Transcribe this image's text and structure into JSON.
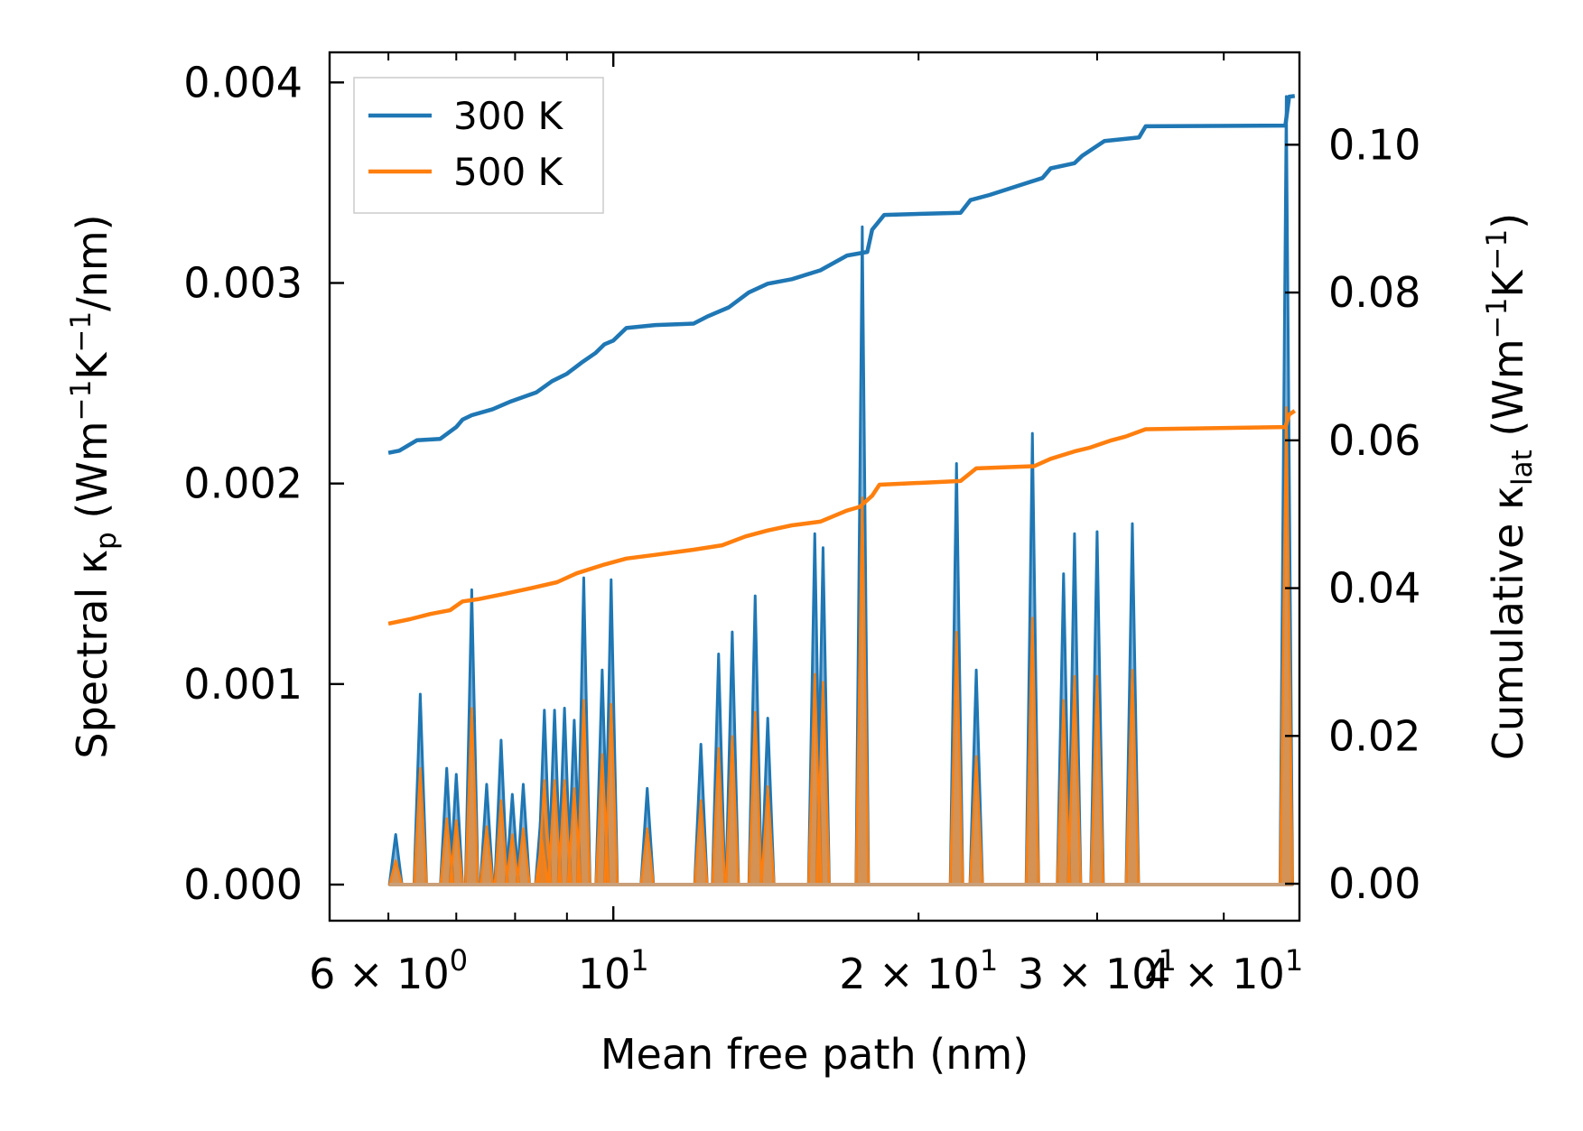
{
  "chart_data": {
    "type": "line",
    "title": "",
    "xlabel": "Mean free path (nm)",
    "ylabel": {
      "main": "Spectral κ",
      "sub": "p",
      "unit_open": " (Wm",
      "exp1": "−1",
      "mid": "K",
      "exp2": "−1",
      "unit_close": "/nm)"
    },
    "y2label": {
      "main": "Cumulative κ",
      "sub": "lat",
      "unit_open": " (Wm",
      "exp1": "−1",
      "mid": "K",
      "exp2": "−1",
      "unit_close": ")"
    },
    "x_scale": "log",
    "xlim": [
      5.25,
      47.5
    ],
    "ylim": [
      -0.00018,
      0.00415
    ],
    "y2lim": [
      -0.005,
      0.1125
    ],
    "x_ticks": [
      {
        "value": 6,
        "base": "6 × 10",
        "exp": "0"
      },
      {
        "value": 10,
        "base": "10",
        "exp": "1"
      },
      {
        "value": 20,
        "base": "2 × 10",
        "exp": "1"
      },
      {
        "value": 30,
        "base": "3 × 10",
        "exp": "1"
      },
      {
        "value": 40,
        "base": "4 × 10",
        "exp": "1"
      }
    ],
    "y_ticks": [
      "0.000",
      "0.001",
      "0.002",
      "0.003",
      "0.004"
    ],
    "y_tick_values": [
      0,
      0.001,
      0.002,
      0.003,
      0.004
    ],
    "y2_ticks": [
      "0.00",
      "0.02",
      "0.04",
      "0.06",
      "0.08",
      "0.10"
    ],
    "y2_tick_values": [
      0,
      0.02,
      0.04,
      0.06,
      0.08,
      0.1
    ],
    "legend": {
      "position": "top-left",
      "entries": [
        {
          "label": "300 K",
          "color": "#1f77b4"
        },
        {
          "label": "500 K",
          "color": "#ff7f0e"
        }
      ]
    },
    "cumulative_series": [
      {
        "name": "300 K",
        "color": "#1f77b4",
        "axis": "right",
        "x": [
          6.0,
          6.15,
          6.4,
          6.75,
          7.0,
          7.1,
          7.25,
          7.6,
          7.9,
          8.4,
          8.7,
          9.0,
          9.3,
          9.6,
          9.8,
          10.0,
          10.3,
          11.0,
          12.0,
          12.4,
          13.0,
          13.6,
          14.2,
          15.0,
          16.0,
          17.0,
          17.8,
          18.0,
          18.5,
          22.0,
          22.5,
          23.5,
          26.5,
          27.0,
          28.5,
          29.0,
          30.5,
          33.0,
          33.5,
          46.0,
          46.4,
          47.0
        ],
        "y": [
          0.0583,
          0.0586,
          0.06,
          0.0602,
          0.0618,
          0.0628,
          0.0634,
          0.0642,
          0.0652,
          0.0665,
          0.068,
          0.069,
          0.0705,
          0.0718,
          0.073,
          0.0735,
          0.0752,
          0.0756,
          0.0758,
          0.0768,
          0.078,
          0.08,
          0.0812,
          0.0818,
          0.083,
          0.085,
          0.0855,
          0.0885,
          0.0905,
          0.0908,
          0.0925,
          0.0932,
          0.0955,
          0.0968,
          0.0975,
          0.0985,
          0.1005,
          0.101,
          0.1025,
          0.1026,
          0.1065,
          0.1066
        ]
      },
      {
        "name": "500 K",
        "color": "#ff7f0e",
        "axis": "right",
        "x": [
          6.0,
          6.3,
          6.6,
          6.9,
          7.1,
          7.35,
          7.8,
          8.3,
          8.8,
          9.2,
          9.8,
          10.3,
          11.0,
          12.0,
          12.8,
          13.5,
          14.2,
          15.0,
          16.0,
          17.0,
          17.5,
          18.0,
          18.3,
          22.0,
          22.8,
          26.0,
          27.0,
          28.5,
          29.5,
          31.0,
          32.0,
          33.5,
          46.0,
          46.4,
          47.0
        ],
        "y": [
          0.0352,
          0.0358,
          0.0365,
          0.037,
          0.0382,
          0.0385,
          0.0392,
          0.04,
          0.0408,
          0.042,
          0.0432,
          0.044,
          0.0445,
          0.0452,
          0.0458,
          0.047,
          0.0478,
          0.0485,
          0.049,
          0.0505,
          0.051,
          0.0525,
          0.054,
          0.0545,
          0.0562,
          0.0565,
          0.0575,
          0.0585,
          0.059,
          0.06,
          0.0605,
          0.0615,
          0.0618,
          0.0635,
          0.064
        ]
      }
    ],
    "spectral_series": [
      {
        "name": "300 K",
        "color": "#1f77b4",
        "axis": "left",
        "peaks": [
          {
            "x": 6.1,
            "y": 0.00025
          },
          {
            "x": 6.45,
            "y": 0.00095
          },
          {
            "x": 6.85,
            "y": 0.00058
          },
          {
            "x": 7.0,
            "y": 0.00055
          },
          {
            "x": 7.25,
            "y": 0.00147
          },
          {
            "x": 7.5,
            "y": 0.0005
          },
          {
            "x": 7.75,
            "y": 0.00072
          },
          {
            "x": 7.95,
            "y": 0.00045
          },
          {
            "x": 8.15,
            "y": 0.0005
          },
          {
            "x": 8.5,
            "y": 0.0004
          },
          {
            "x": 8.55,
            "y": 0.00087
          },
          {
            "x": 8.75,
            "y": 0.00087
          },
          {
            "x": 8.95,
            "y": 0.00088
          },
          {
            "x": 9.15,
            "y": 0.00082
          },
          {
            "x": 9.35,
            "y": 0.00153
          },
          {
            "x": 9.75,
            "y": 0.00107
          },
          {
            "x": 9.95,
            "y": 0.00152
          },
          {
            "x": 10.8,
            "y": 0.00048
          },
          {
            "x": 12.2,
            "y": 0.0007
          },
          {
            "x": 12.7,
            "y": 0.00115
          },
          {
            "x": 13.1,
            "y": 0.00126
          },
          {
            "x": 13.8,
            "y": 0.00144
          },
          {
            "x": 14.2,
            "y": 0.00083
          },
          {
            "x": 15.8,
            "y": 0.00175
          },
          {
            "x": 16.1,
            "y": 0.00168
          },
          {
            "x": 17.6,
            "y": 0.00328
          },
          {
            "x": 21.8,
            "y": 0.0021
          },
          {
            "x": 22.8,
            "y": 0.00107
          },
          {
            "x": 25.9,
            "y": 0.00225
          },
          {
            "x": 27.8,
            "y": 0.00155
          },
          {
            "x": 28.5,
            "y": 0.00175
          },
          {
            "x": 30.0,
            "y": 0.00176
          },
          {
            "x": 32.5,
            "y": 0.0018
          },
          {
            "x": 46.1,
            "y": 0.00393
          }
        ]
      },
      {
        "name": "500 K",
        "color": "#ff7f0e",
        "axis": "left",
        "peaks": [
          {
            "x": 6.1,
            "y": 0.00012
          },
          {
            "x": 6.45,
            "y": 0.00058
          },
          {
            "x": 6.85,
            "y": 0.00033
          },
          {
            "x": 7.0,
            "y": 0.00032
          },
          {
            "x": 7.25,
            "y": 0.00088
          },
          {
            "x": 7.5,
            "y": 0.00029
          },
          {
            "x": 7.75,
            "y": 0.00042
          },
          {
            "x": 7.95,
            "y": 0.00025
          },
          {
            "x": 8.15,
            "y": 0.00028
          },
          {
            "x": 8.5,
            "y": 0.00022
          },
          {
            "x": 8.55,
            "y": 0.00052
          },
          {
            "x": 8.75,
            "y": 0.00052
          },
          {
            "x": 8.95,
            "y": 0.00052
          },
          {
            "x": 9.15,
            "y": 0.00048
          },
          {
            "x": 9.35,
            "y": 0.00092
          },
          {
            "x": 9.75,
            "y": 0.00065
          },
          {
            "x": 9.95,
            "y": 0.0009
          },
          {
            "x": 10.8,
            "y": 0.00028
          },
          {
            "x": 12.2,
            "y": 0.00042
          },
          {
            "x": 12.7,
            "y": 0.00068
          },
          {
            "x": 13.1,
            "y": 0.00074
          },
          {
            "x": 13.8,
            "y": 0.00086
          },
          {
            "x": 14.2,
            "y": 0.00049
          },
          {
            "x": 15.8,
            "y": 0.00105
          },
          {
            "x": 16.1,
            "y": 0.00101
          },
          {
            "x": 17.6,
            "y": 0.00193
          },
          {
            "x": 21.8,
            "y": 0.00126
          },
          {
            "x": 22.8,
            "y": 0.00064
          },
          {
            "x": 25.9,
            "y": 0.00133
          },
          {
            "x": 27.8,
            "y": 0.00092
          },
          {
            "x": 28.5,
            "y": 0.00104
          },
          {
            "x": 30.0,
            "y": 0.00104
          },
          {
            "x": 32.5,
            "y": 0.00107
          },
          {
            "x": 46.1,
            "y": 0.00238
          }
        ]
      }
    ]
  }
}
